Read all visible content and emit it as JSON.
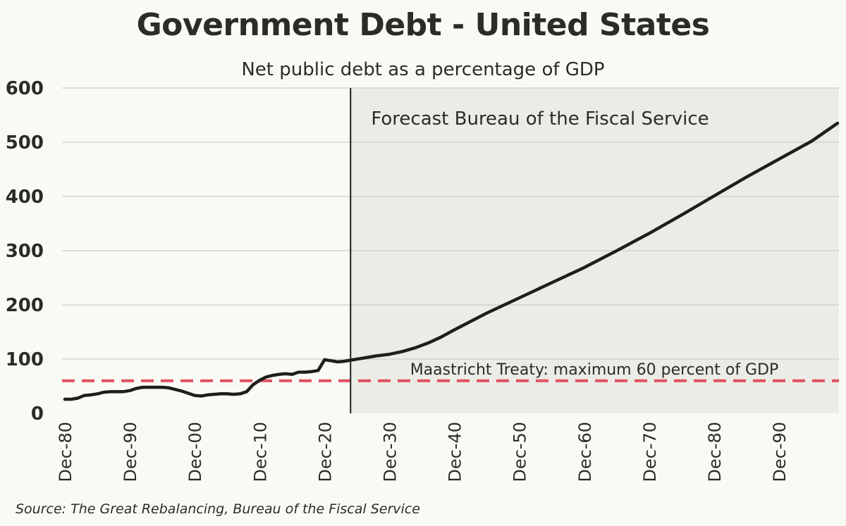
{
  "chart_data": {
    "type": "line",
    "title": "Government Debt - United States",
    "subtitle": "Net public debt as a percentage of GDP",
    "source": "Source: The Great Rebalancing, Bureau of the Fiscal Service",
    "xlabel": "",
    "ylabel": "",
    "ylim": [
      0,
      600
    ],
    "y_ticks": [
      0,
      100,
      200,
      300,
      400,
      500,
      600
    ],
    "xlim": [
      1980,
      2099
    ],
    "x_ticks": [
      {
        "x": 1980,
        "label": "Dec-80"
      },
      {
        "x": 1990,
        "label": "Dec-90"
      },
      {
        "x": 2000,
        "label": "Dec-00"
      },
      {
        "x": 2010,
        "label": "Dec-10"
      },
      {
        "x": 2020,
        "label": "Dec-20"
      },
      {
        "x": 2030,
        "label": "Dec-30"
      },
      {
        "x": 2040,
        "label": "Dec-40"
      },
      {
        "x": 2050,
        "label": "Dec-50"
      },
      {
        "x": 2060,
        "label": "Dec-60"
      },
      {
        "x": 2070,
        "label": "Dec-70"
      },
      {
        "x": 2080,
        "label": "Dec-80"
      },
      {
        "x": 2090,
        "label": "Dec-90"
      }
    ],
    "grid": "horizontal",
    "forecast_start": 2024,
    "forecast_label": "Forecast Bureau of the Fiscal Service",
    "threshold": {
      "value": 60,
      "label": "Maastricht Treaty: maximum 60 percent of GDP",
      "color": "#e0505f"
    },
    "series": [
      {
        "color": "#1e1e1a",
        "x": [
          1980,
          1981,
          1982,
          1983,
          1984,
          1985,
          1986,
          1987,
          1988,
          1989,
          1990,
          1991,
          1992,
          1993,
          1994,
          1995,
          1996,
          1997,
          1998,
          1999,
          2000,
          2001,
          2002,
          2003,
          2004,
          2005,
          2006,
          2007,
          2008,
          2009,
          2010,
          2011,
          2012,
          2013,
          2014,
          2015,
          2016,
          2017,
          2018,
          2019,
          2020,
          2021,
          2022,
          2023,
          2024,
          2026,
          2028,
          2030,
          2032,
          2034,
          2036,
          2038,
          2040,
          2045,
          2050,
          2055,
          2060,
          2065,
          2070,
          2075,
          2080,
          2085,
          2090,
          2095,
          2099
        ],
        "values": [
          26,
          26,
          28,
          33,
          34,
          36,
          39,
          40,
          40,
          40,
          42,
          46,
          48,
          48,
          48,
          48,
          47,
          44,
          41,
          37,
          33,
          32,
          34,
          35,
          36,
          36,
          35,
          36,
          40,
          53,
          61,
          67,
          70,
          72,
          73,
          72,
          76,
          76,
          77,
          79,
          99,
          97,
          95,
          96,
          98,
          102,
          106,
          109,
          114,
          121,
          130,
          141,
          154,
          185,
          213,
          241,
          269,
          300,
          332,
          366,
          401,
          436,
          469,
          502,
          535
        ]
      }
    ]
  }
}
